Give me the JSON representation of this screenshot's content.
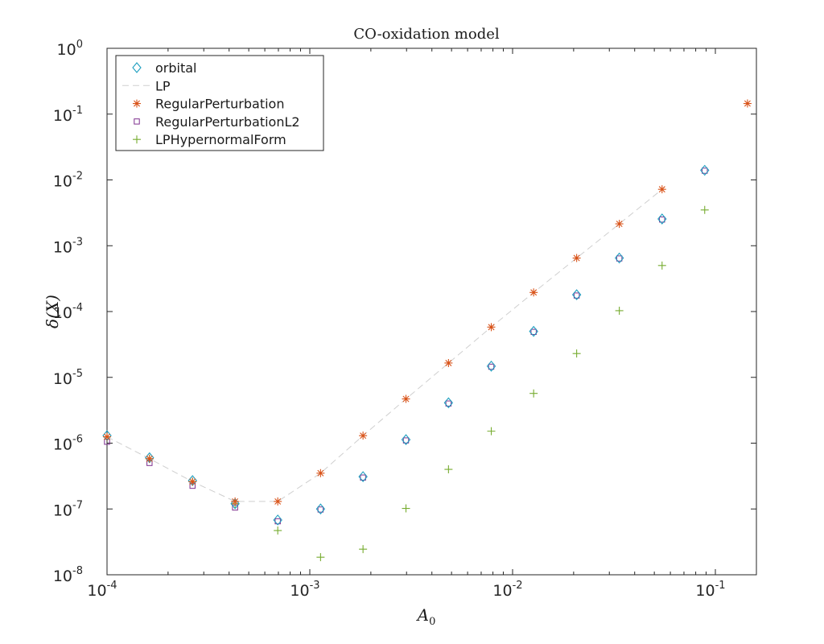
{
  "chart_data": {
    "type": "scatter",
    "title": "CO-oxidation model",
    "xlabel": "A",
    "xlabel_sub": "0",
    "ylabel": "δ(X)",
    "xscale": "log",
    "yscale": "log",
    "xlim": [
      0.0001,
      0.15
    ],
    "ylim": [
      1e-08,
      1
    ],
    "x_ticks": [
      {
        "base": "10",
        "exp": "-4"
      },
      {
        "base": "10",
        "exp": "-3"
      },
      {
        "base": "10",
        "exp": "-2"
      },
      {
        "base": "10",
        "exp": "-1"
      }
    ],
    "y_ticks": [
      {
        "base": "10",
        "exp": "0"
      },
      {
        "base": "10",
        "exp": "-1"
      },
      {
        "base": "10",
        "exp": "-2"
      },
      {
        "base": "10",
        "exp": "-3"
      },
      {
        "base": "10",
        "exp": "-4"
      },
      {
        "base": "10",
        "exp": "-5"
      },
      {
        "base": "10",
        "exp": "-6"
      },
      {
        "base": "10",
        "exp": "-7"
      },
      {
        "base": "10",
        "exp": "-8"
      }
    ],
    "grid": false,
    "legend_position": "top-left",
    "series": [
      {
        "name": "orbital",
        "marker": "diamond",
        "color": "#1f9fc0",
        "x": [
          0.0001,
          0.000162,
          0.000264,
          0.000428,
          0.000695,
          0.00113,
          0.00183,
          0.00298,
          0.00483,
          0.00785,
          0.0127,
          0.0207,
          0.0336,
          0.0546,
          0.0886
        ],
        "y": [
          1.3e-06,
          6e-07,
          2.7e-07,
          1.2e-07,
          6.8e-08,
          1e-07,
          3.1e-07,
          1.13e-06,
          4.1e-06,
          1.48e-05,
          5e-05,
          0.00018,
          0.00065,
          0.00255,
          0.014
        ]
      },
      {
        "name": "LP",
        "marker": "line",
        "color": "#cfcfcf",
        "x": [
          0.0001,
          0.000162,
          0.000264,
          0.000428,
          0.000695,
          0.00113,
          0.00183,
          0.00298,
          0.00483,
          0.00785,
          0.0127,
          0.0207,
          0.0336,
          0.0546
        ],
        "y": [
          1.25e-06,
          5.8e-07,
          2.6e-07,
          1.3e-07,
          1.3e-07,
          3.5e-07,
          1.3e-06,
          4.7e-06,
          1.65e-05,
          5.8e-05,
          0.000195,
          0.00065,
          0.00215,
          0.0072
        ]
      },
      {
        "name": "RegularPerturbation",
        "marker": "asterisk",
        "color": "#d95319",
        "x": [
          0.0001,
          0.000162,
          0.000264,
          0.000428,
          0.000695,
          0.00113,
          0.00183,
          0.00298,
          0.00483,
          0.00785,
          0.0127,
          0.0207,
          0.0336,
          0.0546,
          0.144
        ],
        "y": [
          1.25e-06,
          5.8e-07,
          2.6e-07,
          1.3e-07,
          1.3e-07,
          3.5e-07,
          1.3e-06,
          4.7e-06,
          1.65e-05,
          5.8e-05,
          0.000195,
          0.00065,
          0.00215,
          0.0072,
          0.145
        ]
      },
      {
        "name": "RegularPerturbationL2",
        "marker": "square",
        "color": "#7e2f8e",
        "x": [
          0.0001,
          0.000162,
          0.000264,
          0.000428,
          0.000695,
          0.00113,
          0.00183,
          0.00298,
          0.00483,
          0.00785,
          0.0127,
          0.0207,
          0.0336,
          0.0546,
          0.0886
        ],
        "y": [
          1.05e-06,
          5e-07,
          2.25e-07,
          1.05e-07,
          6.5e-08,
          9.8e-08,
          3e-07,
          1.1e-06,
          4e-06,
          1.45e-05,
          4.9e-05,
          0.000175,
          0.00064,
          0.0025,
          0.0138
        ]
      },
      {
        "name": "LPHypernormalForm",
        "marker": "plus",
        "color": "#77ac30",
        "x": [
          0.0001,
          0.000162,
          0.000264,
          0.000428,
          0.000695,
          0.00113,
          0.00183,
          0.00298,
          0.00483,
          0.00785,
          0.0127,
          0.0207,
          0.0336,
          0.0546,
          0.0886
        ],
        "y": [
          1.25e-06,
          5.8e-07,
          2.6e-07,
          1.2e-07,
          4.7e-08,
          1.85e-08,
          2.45e-08,
          1.02e-07,
          4e-07,
          1.52e-06,
          5.7e-06,
          2.3e-05,
          0.000103,
          0.0005,
          0.0035
        ]
      }
    ]
  }
}
